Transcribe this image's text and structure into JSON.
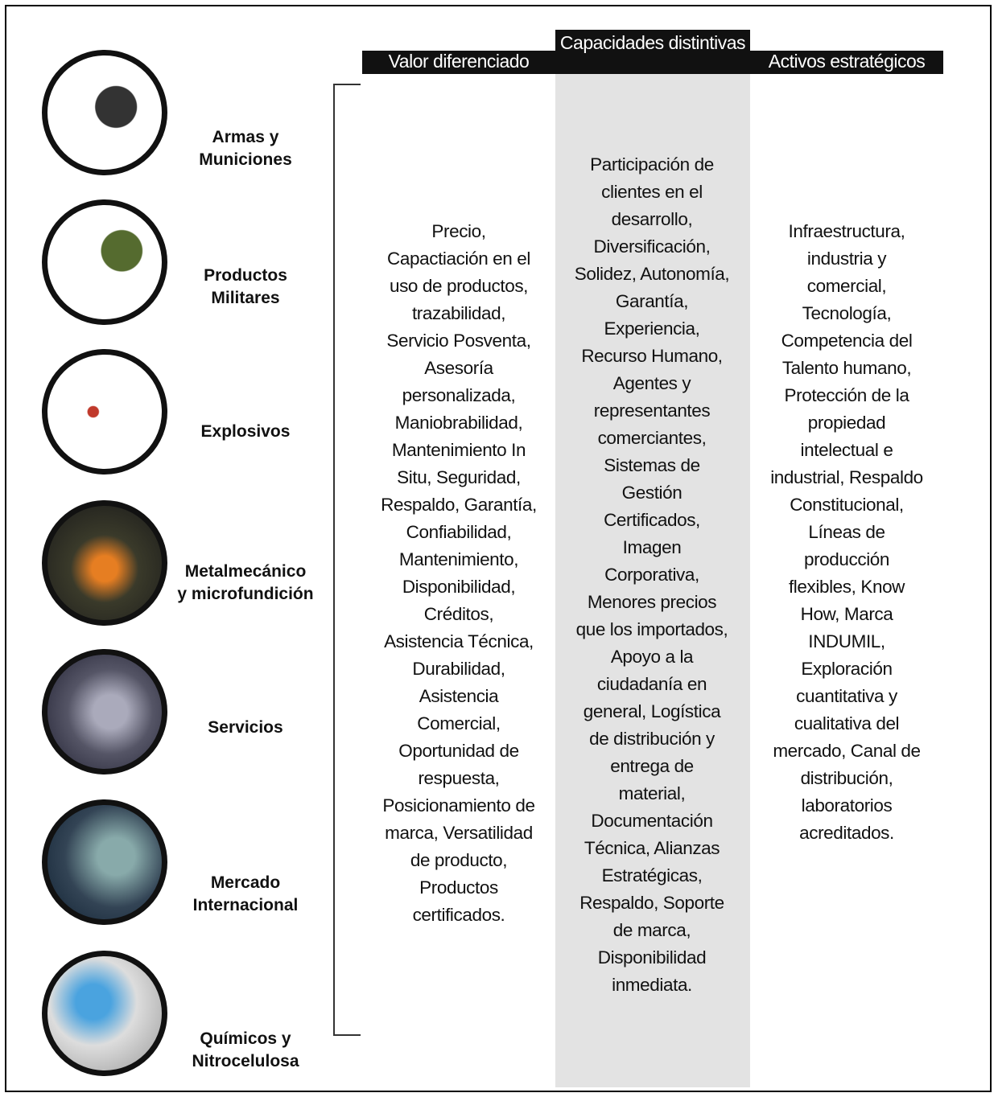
{
  "business_lines": [
    {
      "label": "Armas y\nMuniciones"
    },
    {
      "label": "Productos\nMilitares"
    },
    {
      "label": "Explosivos"
    },
    {
      "label": "Metalmecánico\ny microfundición"
    },
    {
      "label": "Servicios"
    },
    {
      "label": "Mercado\nInternacional"
    },
    {
      "label": "Químicos y\nNitrocelulosa"
    }
  ],
  "columns": [
    {
      "header": "Valor diferenciado",
      "lines": [
        "Precio,",
        "Capactiación en el",
        "uso de productos,",
        "trazabilidad,",
        "Servicio Posventa,",
        "Asesoría",
        "personalizada,",
        "Maniobrabilidad,",
        "Mantenimiento In",
        "Situ, Seguridad,",
        "Respaldo, Garantía,",
        "Confiabilidad,",
        "Mantenimiento,",
        "Disponibilidad,",
        "Créditos,",
        "Asistencia Técnica,",
        "Durabilidad,",
        "Asistencia",
        "Comercial,",
        "Oportunidad de",
        "respuesta,",
        "Posicionamiento de",
        "marca, Versatilidad",
        "de producto,",
        "Productos",
        "certificados."
      ]
    },
    {
      "header": "Capacidades distintivas",
      "lines": [
        "Participación de",
        "clientes en el",
        "desarrollo,",
        "Diversificación,",
        "Solidez, Autonomía,",
        "Garantía,",
        "Experiencia,",
        "Recurso Humano,",
        "Agentes y",
        "representantes",
        "comerciantes,",
        "Sistemas de",
        "Gestión",
        "Certificados,",
        "Imagen",
        "Corporativa,",
        "Menores precios",
        "que los importados,",
        "Apoyo a la",
        "ciudadanía en",
        "general, Logística",
        "de distribución y",
        "entrega de",
        "material,",
        "Documentación",
        "Técnica, Alianzas",
        "Estratégicas,",
        "Respaldo, Soporte",
        "de marca,",
        "Disponibilidad",
        "inmediata."
      ]
    },
    {
      "header": "Activos estratégicos",
      "lines": [
        "Infraestructura,",
        "industria y",
        "comercial,",
        "Tecnología,",
        "Competencia del",
        "Talento humano,",
        "Protección de la",
        "propiedad",
        "intelectual e",
        "industrial, Respaldo",
        "Constitucional,",
        "Líneas de",
        "producción",
        "flexibles, Know",
        "How, Marca",
        "INDUMIL,",
        "Exploración",
        "cuantitativa y",
        "cualitativa del",
        "mercado, Canal de",
        "distribución,",
        "laboratorios",
        "acreditados."
      ]
    }
  ]
}
